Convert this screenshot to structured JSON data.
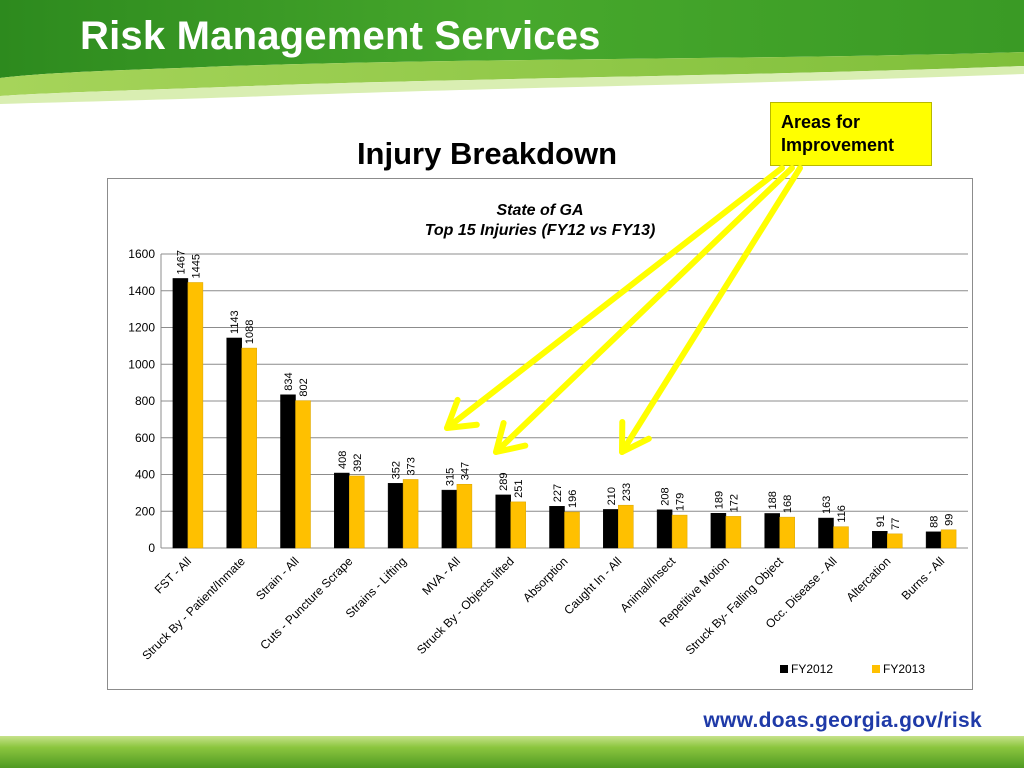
{
  "header": {
    "title": "Risk Management Services"
  },
  "slide": {
    "title": "Injury Breakdown"
  },
  "callout": {
    "text": "Areas for\nImprovement"
  },
  "footer": {
    "url": "www.doas.georgia.gov/risk"
  },
  "colors": {
    "banner_dark": "#2f8a1f",
    "banner_light": "#8cc63f",
    "series_fy2012": "#000000",
    "series_fy2013": "#ffc000",
    "callout_fill": "#ffff00",
    "arrow": "#ffff00",
    "footer_url": "#1f3aa8"
  },
  "chart_data": {
    "type": "bar",
    "title": "State of GA",
    "subtitle": "Top 15 Injuries (FY12 vs FY13)",
    "xlabel": "",
    "ylabel": "",
    "ylim": [
      0,
      1600
    ],
    "yticks": [
      0,
      200,
      400,
      600,
      800,
      1000,
      1200,
      1400,
      1600
    ],
    "grid": true,
    "legend_position": "bottom-right",
    "categories": [
      "FST - All",
      "Struck By - Patient/Inmate",
      "Strain - All",
      "Cuts - Puncture Scrape",
      "Strains - Lifting",
      "MVA - All",
      "Struck By - Objects lifted",
      "Absorption",
      "Caught In - All",
      "Animal/Insect",
      "Repetitive Motion",
      "Struck By- Falling Object",
      "Occ. Disease - All",
      "Altercation",
      "Burns - All"
    ],
    "series": [
      {
        "name": "FY2012",
        "values": [
          1467,
          1143,
          834,
          408,
          352,
          315,
          289,
          227,
          210,
          208,
          189,
          188,
          163,
          91,
          88
        ],
        "labels": [
          "1467",
          "1143",
          "834",
          "408",
          "352",
          "315",
          "289",
          "227",
          "210",
          "208",
          "189",
          "188",
          "163",
          "91",
          "88"
        ]
      },
      {
        "name": "FY2013",
        "values": [
          1445,
          1088,
          802,
          392,
          373,
          347,
          251,
          196,
          233,
          179,
          172,
          168,
          116,
          77,
          99
        ],
        "labels": [
          "1445",
          "1088",
          "802",
          "392",
          "373",
          "347",
          "251",
          "196",
          "233",
          "179",
          "172",
          "168",
          "116",
          "77",
          "99"
        ]
      }
    ],
    "callout_targets": [
      "Strains - Lifting",
      "Struck By - Objects lifted",
      "Caught In - All"
    ]
  }
}
